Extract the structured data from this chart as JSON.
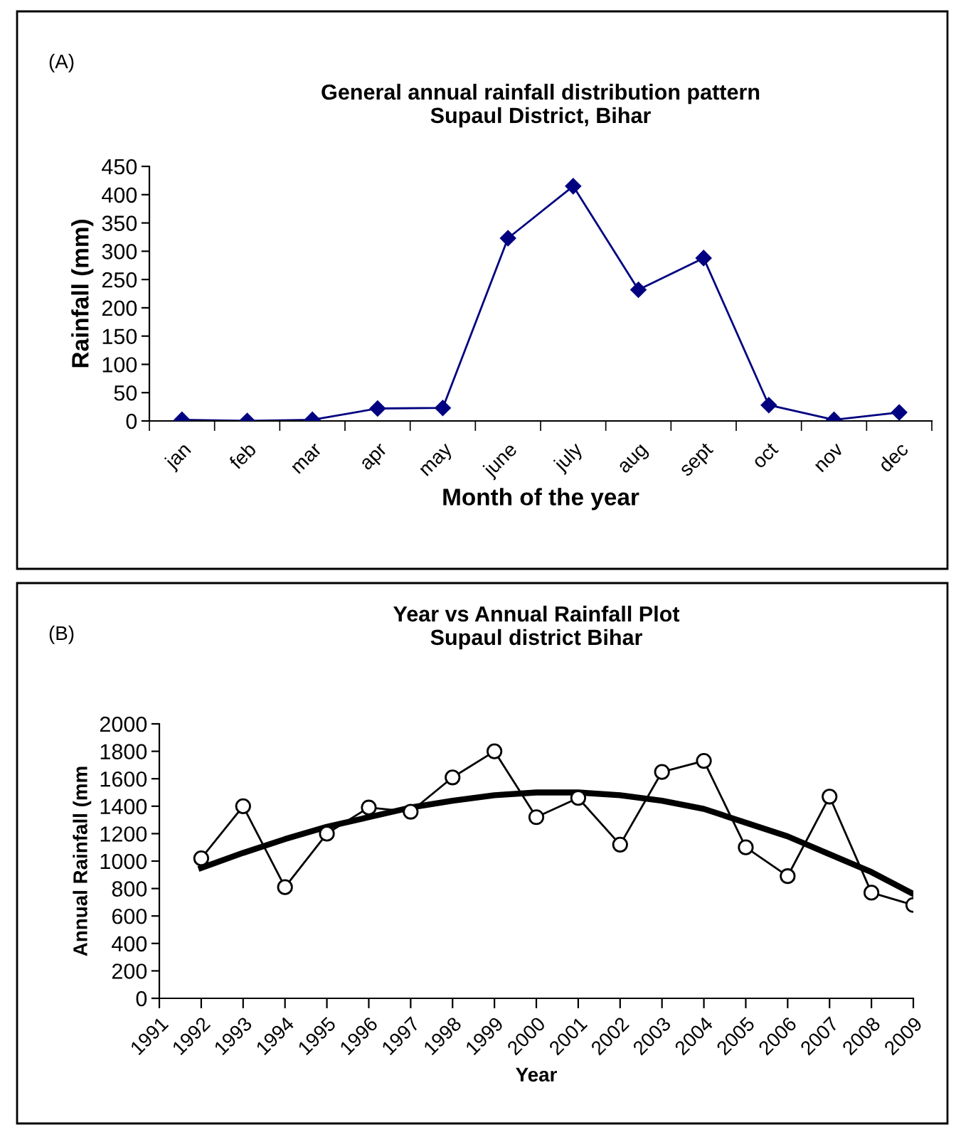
{
  "chart_data": [
    {
      "type": "line",
      "title": "General annual rainfall distribution pattern\nSupaul District, Bihar",
      "xlabel": "Month of the year",
      "ylabel": "Rainfall (mm)",
      "annotations": [
        "(A)"
      ],
      "categories": [
        "jan",
        "feb",
        "mar",
        "apr",
        "may",
        "june",
        "july",
        "aug",
        "sept",
        "oct",
        "nov",
        "dec"
      ],
      "series": [
        {
          "color": "#000080",
          "marker": "diamond",
          "values": [
            2,
            0,
            2,
            22,
            23,
            323,
            415,
            232,
            288,
            28,
            2,
            15
          ]
        }
      ],
      "ylim": [
        0,
        450
      ],
      "yticks": [
        0,
        50,
        100,
        150,
        200,
        250,
        300,
        350,
        400,
        450
      ],
      "grid": false,
      "legend": false
    },
    {
      "type": "line",
      "title": "Year vs Annual Rainfall Plot\nSupaul district Bihar",
      "xlabel": "Year",
      "ylabel": "Annual Rainfall (mm",
      "annotations": [
        "(B)"
      ],
      "categories": [
        "1991",
        "1992",
        "1993",
        "1994",
        "1995",
        "1996",
        "1997",
        "1998",
        "1999",
        "2000",
        "2001",
        "2002",
        "2003",
        "2004",
        "2005",
        "2006",
        "2007",
        "2008",
        "2009"
      ],
      "series": [
        {
          "color": "#000000",
          "marker": "circle",
          "values": [
            null,
            1020,
            1400,
            810,
            1200,
            1390,
            1360,
            1610,
            1800,
            1320,
            1460,
            1120,
            1650,
            1730,
            1100,
            890,
            1470,
            770,
            680
          ]
        },
        {
          "color": "#000000",
          "marker": "none",
          "values": [
            null,
            950,
            1060,
            1160,
            1250,
            1320,
            1390,
            1440,
            1480,
            1500,
            1500,
            1480,
            1440,
            1380,
            1280,
            1180,
            1050,
            920,
            760
          ]
        }
      ],
      "ylim": [
        0,
        2000
      ],
      "yticks": [
        0,
        200,
        400,
        600,
        800,
        1000,
        1200,
        1400,
        1600,
        1800,
        2000
      ],
      "grid": false,
      "legend": false
    }
  ]
}
